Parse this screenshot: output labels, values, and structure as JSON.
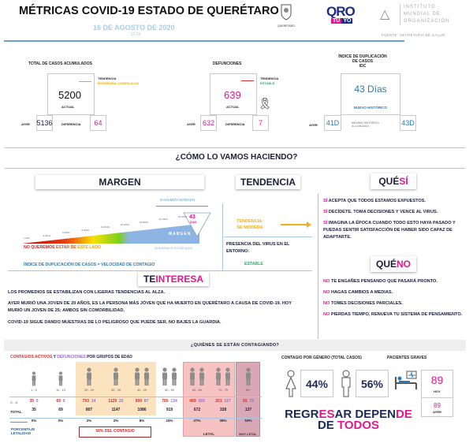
{
  "header": {
    "title": "MÉTRICAS COVID-19 ESTADO DE QUERÉTARO",
    "date": "16 DE AGOSTO DE 2020",
    "time": "20:20",
    "source": "FUENTE: SECRETARÍA DE SALUD.",
    "logos": {
      "queretaro": "QUERÉTARO",
      "qro": "QRO",
      "tu": "TÚ",
      "yo": "YO",
      "instituto": [
        "INSTITUTO",
        "MUNDIAL DE",
        "ORGANIZACIÓN"
      ]
    }
  },
  "casos": {
    "label": "TOTAL DE CASOS ACUMULADOS",
    "value": "5200",
    "actual": "ACTUAL",
    "tendencia_label": "TENDENCIA",
    "tendencia": "MODERADA, LIGERA ALZA",
    "ayer_label": "AYER",
    "ayer": "5136",
    "dif_label": "DIFERENCIA",
    "dif": "64"
  },
  "defunciones": {
    "label": "DEFUNCIONES",
    "value": "639",
    "actual": "ACTUAL",
    "tendencia_label": "TENDENCIA",
    "tendencia": "ESTABLE",
    "ayer_label": "AYER",
    "ayer": "632",
    "dif_label": "DIFERENCIA",
    "dif": "7"
  },
  "idc": {
    "label": [
      "ÍNDICE DE DUPLICACIÓN",
      "DE CASOS",
      "IDC"
    ],
    "value": "43 Días",
    "note": "NUEVO HISTÓRICO",
    "ayer_label": "AYER",
    "ayer": "41D",
    "max_label": [
      "MÁXIMO HISTÓRICO",
      "ALCANZADO"
    ],
    "max": "43D"
  },
  "section_title": "¿CÓMO LO VAMOS HACIENDO?",
  "margen": {
    "title": "MARGEN",
    "ganamos": "GANAMOS MARGEN",
    "scale": [
      "1 DÍA",
      "3 DÍAS",
      "6 DÍAS",
      "9 DÍAS",
      "12 DÍAS",
      "15 DÍAS",
      "18 DÍAS",
      "21 DÍAS",
      "30 DÍAS"
    ],
    "marker_value": "43",
    "marker_unit": "DÍAS",
    "bar_label": "MARGEN",
    "no_queremos_1": "NO QUEREMOS ",
    "no_queremos_2": "ESTAR DE ",
    "no_queremos_3": "ESTE LADO",
    "queremos": "QUEREMOS ESTAR AQUÍ",
    "footer": "ÍNDICE DE DUPLICACIÓN DE CASOS = VELOCIDAD DE CONTAGIO"
  },
  "tendencia": {
    "title": "TENDENCIA",
    "label": "TENDENCIA:",
    "value": "SE MODERA",
    "presencia": "PRESENCIA DEL VIRUS EN EL ENTORNO:",
    "presencia_value": "ESTABLE"
  },
  "que_si": {
    "title_a": "QUÉ ",
    "title_b": "SÍ",
    "items": [
      {
        "k": "SÍ",
        "t": " ACEPTA QUE TODOS ESTAMOS EXPUESTOS."
      },
      {
        "k": "SÍ",
        "t": " DECÍDETE, TOMA DECISIONES Y VENCE AL VIRUS."
      },
      {
        "k": "SÍ",
        "t": " IMAGINA LA ÉPOCA CUANDO TODO ESTO HAYA PASADO Y PUEDAS SENTIR SATISFACCIÓN DE HABER SIDO CAPAZ DE ADAPTARTE."
      }
    ]
  },
  "que_no": {
    "title_a": "QUÉ ",
    "title_b": "NO",
    "items": [
      {
        "k": "NO",
        "t": " TE ENGAÑES PENSANDO QUE PASARÁ PRONTO."
      },
      {
        "k": "NO",
        "t": " HAGAS CAMBIOS A MEDIAS."
      },
      {
        "k": "NO",
        "t": " TOMES DECISIONES PARCIALES."
      },
      {
        "k": "NO",
        "t": " PIERDAS TIEMPO, RENUEVA TU SISTEMA DE PENSAMIENTO."
      }
    ]
  },
  "te_interesa": {
    "title_a": "TE ",
    "title_b": "INTERESA",
    "paragraphs": [
      "LOS PROMEDIOS SE ESTABILIZAN CON LIGERAS TENDENCIAS AL ALZA.",
      "AYER MURIÓ UNA JOVEN DE 20 AÑOS, ES LA PERSONA MÁS JÓVEN QUE HA MUERTO EN QUERÉTARO A CAUSA DE COVID-19.  HOY MURIÓ UN JOVEN DE 25; AMBOS SIN COMORBILIDAD.",
      "COVID-19 SIGUE DANDO MUESTRAS DE LO PELIGROSO QUE PUEDE SER.  NO BAJES LA GUARDIA."
    ]
  },
  "quienes": {
    "title": "¿QUIÉNES SE ESTÁN CONTAGIANDO?",
    "sub_a": "CONTAGIOS ACTIVOS",
    "sub_b": " Y ",
    "sub_c": "DEFUNCIONES",
    "sub_d": " POR GRUPOS DE EDAD",
    "row_cd": "C - D",
    "row_total": "TOTAL",
    "pct_label": [
      "PORCENTAJE",
      "LETALIDAD"
    ],
    "contagio_note": "58%  DEL CONTAGIO",
    "letal": "LETAL",
    "muy_letal": "MUY LETAL",
    "groups": [
      {
        "age": "1 - 9",
        "c": "35",
        "d": "0",
        "total": "35",
        "pct": "0%",
        "icon": "child-icon",
        "n": 1
      },
      {
        "age": "10 - 19",
        "c": "69",
        "d": "0",
        "total": "69",
        "pct": "0%",
        "icon": "teen-icon",
        "n": 1
      },
      {
        "age": "20 - 29",
        "c": "793",
        "d": "14",
        "total": "807",
        "pct": "2%",
        "icon": "person-icon",
        "n": 1
      },
      {
        "age": "30 - 39",
        "c": "1125",
        "d": "22",
        "total": "1147",
        "pct": "2%",
        "icon": "person-icon",
        "n": 1
      },
      {
        "age": "40 - 49",
        "c": "999",
        "d": "87",
        "total": "1086",
        "pct": "8%",
        "icon": "couple-icon",
        "n": 2
      },
      {
        "age": "50 - 59",
        "c": "785",
        "d": "134",
        "total": "919",
        "pct": "15%",
        "icon": "couple-icon",
        "n": 2
      },
      {
        "age": "60 - 69",
        "c": "489",
        "d": "183",
        "total": "672",
        "pct": "27%",
        "icon": "couple-icon",
        "n": 2
      },
      {
        "age": "70 - 79",
        "c": "201",
        "d": "127",
        "total": "328",
        "pct": "39%",
        "icon": "couple-icon",
        "n": 2
      },
      {
        "age": "80+",
        "c": "65",
        "d": "72",
        "total": "137",
        "pct": "53%",
        "icon": "elder-icon",
        "n": 1
      }
    ]
  },
  "genero": {
    "title": "CONTAGIO POR GÉNERO (TOTAL CASOS)",
    "mujeres": "44%",
    "hombres": "56%"
  },
  "graves": {
    "title": "PACIENTES GRAVES",
    "hoy": "89",
    "hoy_label": "HOY",
    "ayer": "89",
    "ayer_label": "AYER"
  },
  "slogan": {
    "l1a": "REGR",
    "l1b": "ES",
    "l1c": "AR DEPEN",
    "l1d": "DE",
    "l2a": "DE ",
    "l2b": "TODOS"
  },
  "colors": {
    "pink": "#e0198f",
    "navy": "#1c2a5a",
    "blue": "#2a7ab8",
    "orange": "#f0a800",
    "green": "#3aa068",
    "red": "#d0312d"
  }
}
